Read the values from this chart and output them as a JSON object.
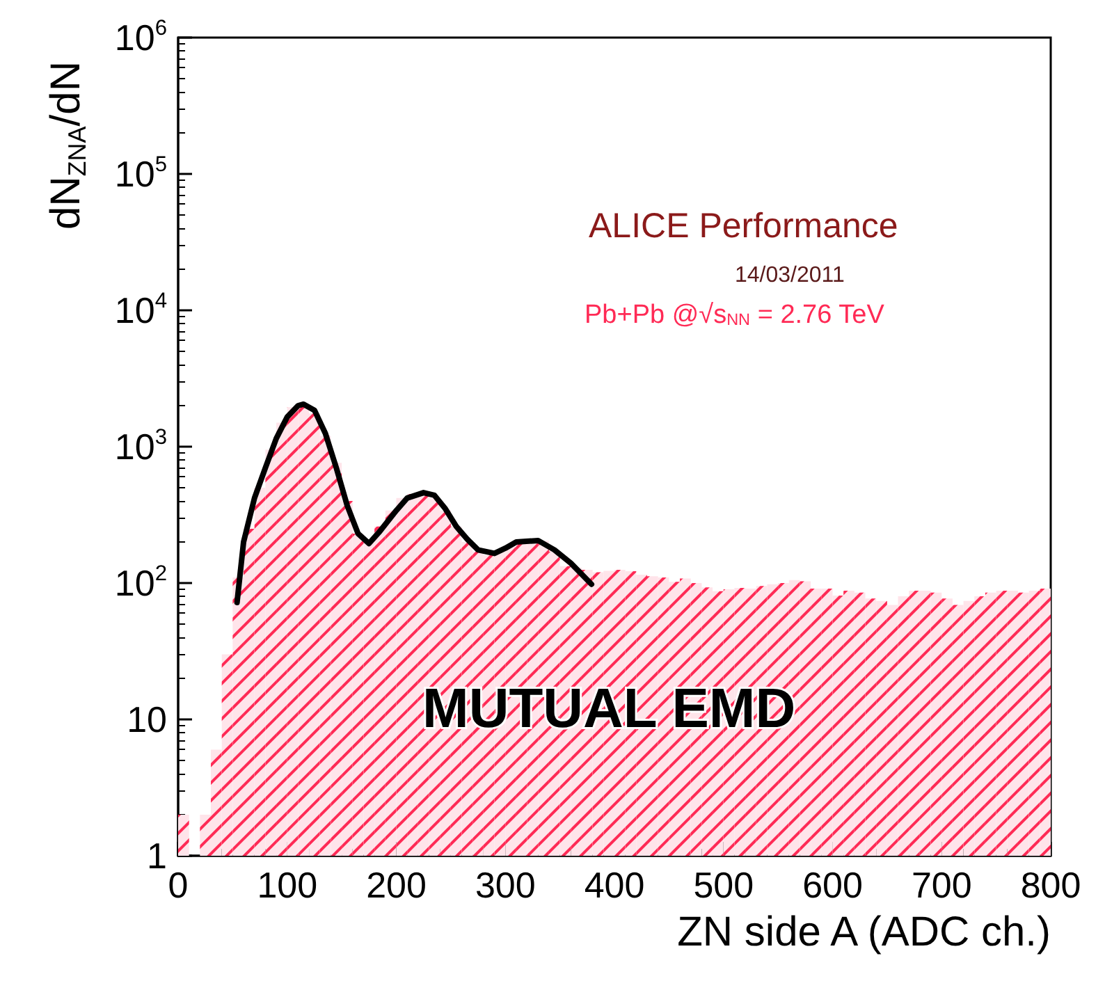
{
  "chart_data": {
    "type": "histogram",
    "xlabel": "ZN side A (ADC ch.)",
    "ylabel": "dN$_{ZNA}$/dN",
    "bins": [
      0,
      10,
      20,
      30,
      40,
      50,
      60,
      70,
      80,
      90,
      100,
      110,
      120,
      130,
      140,
      150,
      160,
      170,
      180,
      190,
      200,
      210,
      220,
      230,
      240,
      250,
      260,
      270,
      280,
      290,
      300,
      310,
      320,
      330,
      340,
      350,
      360,
      370,
      380,
      390,
      400,
      410,
      420,
      430,
      440,
      450,
      460,
      470,
      480,
      490,
      500,
      510,
      520,
      530,
      540,
      550,
      560,
      570,
      580,
      590,
      600,
      610,
      620,
      630,
      640,
      650,
      660,
      670,
      680,
      690,
      700,
      710,
      720,
      730,
      740,
      750,
      760,
      770,
      780,
      790,
      800
    ],
    "values": [
      2,
      null,
      2,
      6,
      30,
      110,
      250,
      500,
      950,
      1500,
      1950,
      2050,
      1750,
      1200,
      760,
      400,
      230,
      200,
      260,
      340,
      420,
      450,
      450,
      420,
      340,
      260,
      200,
      170,
      160,
      170,
      185,
      200,
      210,
      205,
      170,
      133,
      130,
      125,
      120,
      123,
      125,
      122,
      115,
      112,
      110,
      102,
      108,
      100,
      93,
      87,
      90,
      92,
      91,
      95,
      98,
      100,
      105,
      103,
      91,
      91,
      81,
      88,
      85,
      77,
      74,
      69,
      80,
      88,
      88,
      85,
      77,
      69,
      74,
      80,
      85,
      88,
      88,
      85,
      88,
      91
    ],
    "color": "#ff2a55",
    "series": [
      {
        "type": "line",
        "color": "#000000",
        "x": [
          54,
          60,
          70,
          80,
          90,
          100,
          110,
          115,
          125,
          135,
          145,
          155,
          165,
          175,
          185,
          200,
          210,
          225,
          235,
          245,
          255,
          265,
          275,
          290,
          300,
          310,
          330,
          345,
          360,
          379
        ],
        "values": [
          72,
          200,
          420,
          700,
          1150,
          1650,
          2000,
          2050,
          1850,
          1250,
          700,
          370,
          230,
          195,
          240,
          340,
          420,
          460,
          440,
          350,
          260,
          210,
          175,
          165,
          180,
          200,
          205,
          175,
          140,
          98
        ]
      }
    ],
    "log": "y",
    "xlim": [
      0,
      800
    ],
    "xticks": [
      0,
      100,
      200,
      300,
      400,
      500,
      600,
      700,
      800
    ],
    "ylim": [
      1,
      1000000
    ],
    "yticks": [
      1,
      10,
      {
        "value": 100,
        "label": "10$^{2}$"
      },
      {
        "value": 1000,
        "label": "10$^{3}$"
      },
      {
        "value": 10000,
        "label": "10$^{4}$"
      },
      {
        "value": 100000,
        "label": "10$^{5}$"
      },
      {
        "value": 1000000,
        "label": "10$^{6}$"
      }
    ],
    "grid": false,
    "annotations": [
      "ALICE Performance",
      "14/03/2011",
      "Pb+Pb @√s$_{NN}$ = 2.76 TeV",
      "MUTUAL EMD"
    ]
  }
}
